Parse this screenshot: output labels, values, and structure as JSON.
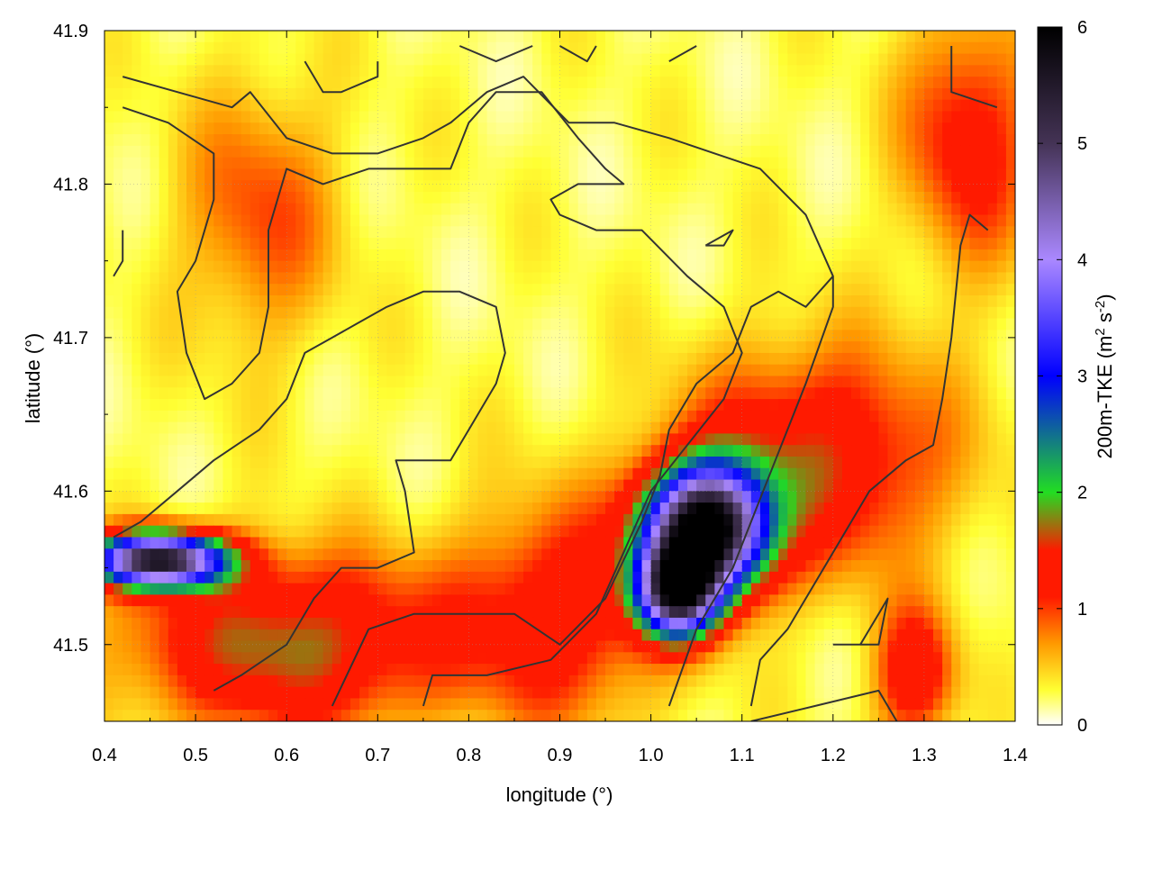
{
  "chart_data": {
    "type": "heatmap",
    "title": "",
    "xlabel": "longitude (°)",
    "ylabel": "latitude (°)",
    "xlim": [
      0.4,
      1.4
    ],
    "ylim": [
      41.45,
      41.9
    ],
    "xticks": [
      "0.4",
      "0.5",
      "0.6",
      "0.7",
      "0.8",
      "0.9",
      "1.0",
      "1.1",
      "1.2",
      "1.3",
      "1.4"
    ],
    "yticks": [
      "41.5",
      "41.6",
      "41.7",
      "41.8",
      "41.9"
    ],
    "grid": true,
    "colorbar": {
      "label_main": "200m-TKE (m",
      "label_sup1": "2",
      "label_mid": " s",
      "label_sup2": "-2",
      "label_end": ")",
      "range": [
        0,
        6
      ],
      "ticks": [
        "0",
        "1",
        "2",
        "3",
        "4",
        "5",
        "6"
      ],
      "palette": [
        "#ffffff",
        "#ffff33",
        "#ff9900",
        "#ff1a00",
        "#ff1a00",
        "#22dd22",
        "#0000ff",
        "#aa88ff",
        "#443355",
        "#000000"
      ],
      "palette_stops": [
        0,
        0.3,
        0.7,
        1.1,
        1.5,
        2.0,
        3.0,
        4.0,
        5.0,
        6.0
      ]
    },
    "hotspots": [
      {
        "lon": 1.06,
        "lat": 41.575,
        "peak": 5.9,
        "sigma_lon": 0.045,
        "sigma_lat": 0.028
      },
      {
        "lon": 1.03,
        "lat": 41.535,
        "peak": 4.8,
        "sigma_lon": 0.03,
        "sigma_lat": 0.02
      },
      {
        "lon": 0.46,
        "lat": 41.555,
        "peak": 5.2,
        "sigma_lon": 0.05,
        "sigma_lat": 0.012
      },
      {
        "lon": 0.6,
        "lat": 41.5,
        "peak": 1.5,
        "sigma_lon": 0.12,
        "sigma_lat": 0.04
      },
      {
        "lon": 1.18,
        "lat": 41.62,
        "peak": 1.3,
        "sigma_lon": 0.1,
        "sigma_lat": 0.05
      },
      {
        "lon": 0.9,
        "lat": 41.52,
        "peak": 1.1,
        "sigma_lon": 0.08,
        "sigma_lat": 0.05
      },
      {
        "lon": 1.35,
        "lat": 41.83,
        "peak": 1.0,
        "sigma_lon": 0.05,
        "sigma_lat": 0.06
      },
      {
        "lon": 0.57,
        "lat": 41.78,
        "peak": 0.7,
        "sigma_lon": 0.06,
        "sigma_lat": 0.06
      },
      {
        "lon": 1.29,
        "lat": 41.48,
        "peak": 1.2,
        "sigma_lon": 0.03,
        "sigma_lat": 0.03
      }
    ],
    "contours": [
      [
        [
          0.42,
          41.87
        ],
        [
          0.48,
          41.86
        ],
        [
          0.54,
          41.85
        ],
        [
          0.56,
          41.86
        ],
        [
          0.6,
          41.83
        ],
        [
          0.65,
          41.82
        ],
        [
          0.7,
          41.82
        ],
        [
          0.75,
          41.83
        ],
        [
          0.78,
          41.84
        ],
        [
          0.82,
          41.86
        ],
        [
          0.86,
          41.87
        ],
        [
          0.91,
          41.84
        ],
        [
          0.96,
          41.84
        ],
        [
          1.02,
          41.83
        ],
        [
          1.07,
          41.82
        ],
        [
          1.12,
          41.81
        ],
        [
          1.17,
          41.78
        ],
        [
          1.2,
          41.74
        ],
        [
          1.2,
          41.72
        ],
        [
          1.17,
          41.67
        ],
        [
          1.13,
          41.61
        ],
        [
          1.09,
          41.55
        ],
        [
          1.05,
          41.51
        ],
        [
          1.02,
          41.46
        ]
      ],
      [
        [
          0.42,
          41.85
        ],
        [
          0.47,
          41.84
        ],
        [
          0.52,
          41.82
        ],
        [
          0.52,
          41.79
        ],
        [
          0.5,
          41.75
        ],
        [
          0.48,
          41.73
        ],
        [
          0.49,
          41.69
        ],
        [
          0.51,
          41.66
        ],
        [
          0.54,
          41.67
        ],
        [
          0.57,
          41.69
        ],
        [
          0.58,
          41.72
        ],
        [
          0.58,
          41.77
        ],
        [
          0.6,
          41.81
        ],
        [
          0.64,
          41.8
        ],
        [
          0.69,
          41.81
        ],
        [
          0.73,
          41.81
        ],
        [
          0.78,
          41.81
        ],
        [
          0.8,
          41.84
        ],
        [
          0.83,
          41.86
        ],
        [
          0.88,
          41.86
        ],
        [
          0.92,
          41.83
        ],
        [
          0.95,
          41.81
        ],
        [
          0.97,
          41.8
        ],
        [
          0.92,
          41.8
        ],
        [
          0.89,
          41.79
        ],
        [
          0.9,
          41.78
        ],
        [
          0.94,
          41.77
        ],
        [
          0.99,
          41.77
        ],
        [
          1.04,
          41.74
        ],
        [
          1.08,
          41.72
        ],
        [
          1.1,
          41.69
        ],
        [
          1.08,
          41.66
        ],
        [
          1.04,
          41.63
        ],
        [
          1.0,
          41.6
        ],
        [
          0.97,
          41.56
        ],
        [
          0.94,
          41.52
        ],
        [
          0.89,
          41.49
        ],
        [
          0.82,
          41.48
        ],
        [
          0.76,
          41.48
        ],
        [
          0.75,
          41.46
        ]
      ],
      [
        [
          0.52,
          41.47
        ],
        [
          0.55,
          41.48
        ],
        [
          0.6,
          41.5
        ],
        [
          0.63,
          41.53
        ],
        [
          0.66,
          41.55
        ],
        [
          0.7,
          41.55
        ],
        [
          0.74,
          41.56
        ],
        [
          0.73,
          41.6
        ],
        [
          0.72,
          41.62
        ],
        [
          0.74,
          41.62
        ],
        [
          0.78,
          41.62
        ],
        [
          0.8,
          41.64
        ],
        [
          0.83,
          41.67
        ],
        [
          0.84,
          41.69
        ],
        [
          0.83,
          41.72
        ],
        [
          0.79,
          41.73
        ],
        [
          0.75,
          41.73
        ],
        [
          0.71,
          41.72
        ],
        [
          0.68,
          41.71
        ],
        [
          0.65,
          41.7
        ],
        [
          0.62,
          41.69
        ],
        [
          0.6,
          41.66
        ],
        [
          0.57,
          41.64
        ],
        [
          0.52,
          41.62
        ],
        [
          0.48,
          41.6
        ],
        [
          0.44,
          41.58
        ],
        [
          0.41,
          41.57
        ]
      ],
      [
        [
          0.65,
          41.46
        ],
        [
          0.69,
          41.51
        ],
        [
          0.74,
          41.52
        ],
        [
          0.8,
          41.52
        ],
        [
          0.85,
          41.52
        ],
        [
          0.9,
          41.5
        ],
        [
          0.95,
          41.53
        ],
        [
          0.99,
          41.58
        ],
        [
          1.01,
          41.61
        ],
        [
          1.02,
          41.64
        ],
        [
          1.05,
          41.67
        ],
        [
          1.09,
          41.69
        ],
        [
          1.11,
          41.72
        ],
        [
          1.14,
          41.73
        ],
        [
          1.17,
          41.72
        ],
        [
          1.2,
          41.74
        ],
        [
          1.2,
          41.74
        ]
      ],
      [
        [
          0.62,
          41.88
        ],
        [
          0.64,
          41.86
        ],
        [
          0.66,
          41.86
        ],
        [
          0.7,
          41.87
        ],
        [
          0.7,
          41.88
        ]
      ],
      [
        [
          0.79,
          41.89
        ],
        [
          0.83,
          41.88
        ],
        [
          0.87,
          41.89
        ]
      ],
      [
        [
          0.9,
          41.89
        ],
        [
          0.93,
          41.88
        ],
        [
          0.94,
          41.89
        ]
      ],
      [
        [
          1.02,
          41.88
        ],
        [
          1.05,
          41.89
        ]
      ],
      [
        [
          1.06,
          41.76
        ],
        [
          1.08,
          41.76
        ],
        [
          1.09,
          41.77
        ],
        [
          1.06,
          41.76
        ]
      ],
      [
        [
          1.33,
          41.89
        ],
        [
          1.33,
          41.86
        ],
        [
          1.38,
          41.85
        ]
      ],
      [
        [
          1.37,
          41.77
        ],
        [
          1.35,
          41.78
        ],
        [
          1.34,
          41.76
        ],
        [
          1.33,
          41.7
        ],
        [
          1.32,
          41.66
        ],
        [
          1.31,
          41.63
        ],
        [
          1.28,
          41.62
        ],
        [
          1.24,
          41.6
        ],
        [
          1.21,
          41.57
        ],
        [
          1.18,
          41.54
        ],
        [
          1.15,
          41.51
        ],
        [
          1.12,
          41.49
        ],
        [
          1.11,
          41.46
        ]
      ],
      [
        [
          1.2,
          41.5
        ],
        [
          1.25,
          41.5
        ],
        [
          1.26,
          41.53
        ],
        [
          1.25,
          41.52
        ],
        [
          1.23,
          41.5
        ]
      ],
      [
        [
          1.11,
          41.45
        ],
        [
          1.18,
          41.46
        ],
        [
          1.25,
          41.47
        ],
        [
          1.27,
          41.45
        ]
      ],
      [
        [
          0.41,
          41.74
        ],
        [
          0.42,
          41.75
        ],
        [
          0.42,
          41.77
        ]
      ]
    ]
  }
}
